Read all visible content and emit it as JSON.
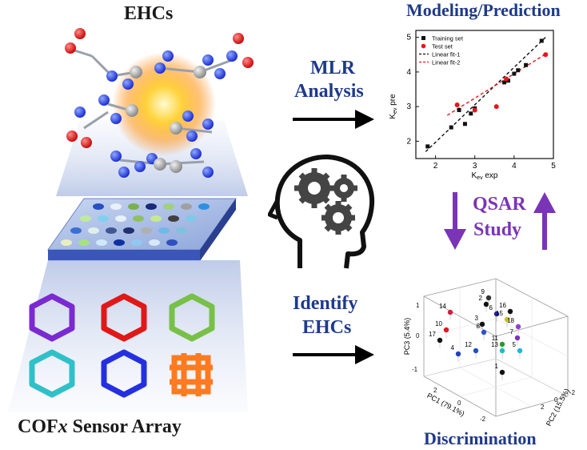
{
  "labels": {
    "ehcs": "EHCs",
    "cof_array": "COFx Sensor Array",
    "mlr": "MLR",
    "analysis": "Analysis",
    "identify": "Identify",
    "identify2": "EHCs",
    "qsar": "QSAR",
    "study": "Study",
    "modeling": "Modeling/Prediction",
    "discrimination": "Discrimination"
  },
  "colors": {
    "blue_dark": "#1f3a8a",
    "purple": "#7a35b6",
    "red": "#e8141c",
    "black": "#111111"
  },
  "chart_data": [
    {
      "type": "scatter",
      "xlabel": "Kev exp",
      "ylabel": "Kev pre",
      "xlim": [
        1.5,
        5.0
      ],
      "ylim": [
        1.5,
        5.2
      ],
      "xticks": [
        "2",
        "3",
        "4",
        "5"
      ],
      "yticks": [
        "2",
        "3",
        "4",
        "5"
      ],
      "legend_position": "top-left",
      "series": [
        {
          "name": "Training set",
          "color": "#111111",
          "marker": "square",
          "points": [
            [
              1.8,
              1.85
            ],
            [
              2.4,
              2.4
            ],
            [
              2.6,
              2.9
            ],
            [
              2.75,
              2.5
            ],
            [
              2.9,
              2.8
            ],
            [
              3.0,
              2.95
            ],
            [
              3.75,
              3.7
            ],
            [
              3.85,
              3.75
            ],
            [
              4.0,
              3.95
            ],
            [
              4.1,
              4.05
            ],
            [
              4.3,
              4.2
            ],
            [
              4.7,
              4.9
            ]
          ]
        },
        {
          "name": "Test set",
          "color": "#e8141c",
          "marker": "circle",
          "points": [
            [
              2.55,
              3.05
            ],
            [
              3.0,
              2.9
            ],
            [
              3.55,
              3.0
            ],
            [
              3.8,
              3.8
            ],
            [
              4.8,
              4.5
            ]
          ]
        },
        {
          "name": "Linear fit-1",
          "color": "#111111",
          "style": "dashed",
          "line": [
            [
              1.75,
              1.7
            ],
            [
              4.8,
              5.0
            ]
          ]
        },
        {
          "name": "Linear fit-2",
          "color": "#e8141c",
          "style": "dashed",
          "line": [
            [
              2.3,
              2.75
            ],
            [
              4.85,
              4.55
            ]
          ]
        }
      ]
    },
    {
      "type": "scatter",
      "xlabel": "PC1 (79.1%)",
      "ylabel": "PC3 (5.4%)",
      "zlabel": "PC2 (15.5%)",
      "xticks": [
        "2",
        "0",
        "-2"
      ],
      "yticks": [
        "1",
        "0",
        "-1"
      ],
      "zticks": [
        "2",
        "0",
        "-2"
      ],
      "point_labels": [
        "1",
        "2",
        "3",
        "4",
        "5",
        "6",
        "7",
        "8",
        "9",
        "10",
        "11",
        "12",
        "13",
        "14",
        "15",
        "16",
        "17",
        "18"
      ],
      "point_colors": [
        "#111111",
        "#111111",
        "#111111",
        "#2040c0",
        "#1cb8d8",
        "#2020a0",
        "#8030c0",
        "#3050d0",
        "#333333",
        "#e8141c",
        "#20a020",
        "#2050c0",
        "#18c0c0",
        "#d02040",
        "#c8c020",
        "#111111",
        "#111111",
        "#9040d0"
      ]
    }
  ]
}
